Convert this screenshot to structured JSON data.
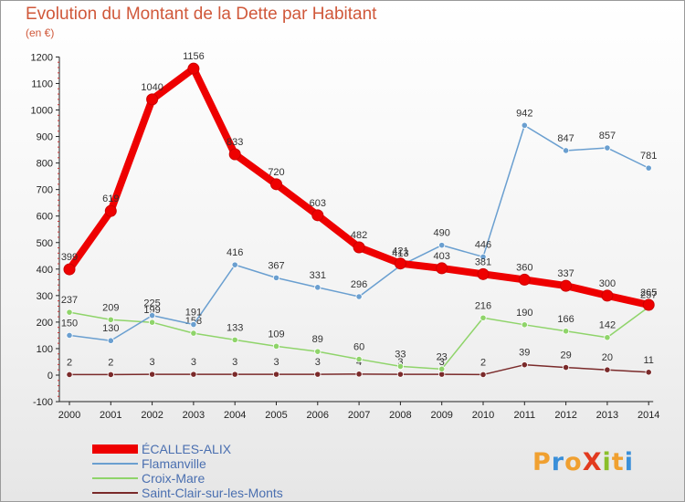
{
  "title": "Evolution du Montant de la Dette par Habitant",
  "unit": "(en €)",
  "logo": {
    "text": "ProXiti",
    "letters": [
      "P",
      "r",
      "o",
      "X",
      "i",
      "t",
      "i"
    ],
    "colors": [
      "#f0a030",
      "#3a8fd9",
      "#f0a030",
      "#e23a1f",
      "#8abf2a",
      "#f0a030",
      "#3a8fd9"
    ]
  },
  "chart_data": {
    "type": "line",
    "title": "Evolution du Montant de la Dette par Habitant",
    "ylabel": "(en €)",
    "x": [
      "2000",
      "2001",
      "2002",
      "2003",
      "2004",
      "2005",
      "2006",
      "2007",
      "2008",
      "2009",
      "2010",
      "2011",
      "2012",
      "2013",
      "2014"
    ],
    "yticks": [
      "-100",
      "0",
      "100",
      "200",
      "300",
      "400",
      "500",
      "600",
      "700",
      "800",
      "900",
      "1000",
      "1100",
      "1200"
    ],
    "ylim": [
      -100,
      1200
    ],
    "grid": false,
    "legend_position": "bottom-left",
    "series": [
      {
        "name": "Saint-Clair-sur-les-Monts",
        "color": "#7a2a2a",
        "width": 1.5,
        "values": [
          2,
          2,
          3,
          3,
          3,
          3,
          3,
          4,
          3,
          3,
          2,
          39,
          29,
          20,
          11
        ],
        "labels": [
          "2",
          "2",
          "3",
          "3",
          "3",
          "3",
          "3",
          "4",
          "3",
          "3",
          "2",
          "39",
          "29",
          "20",
          "11"
        ]
      },
      {
        "name": "Croix-Mare",
        "color": "#8fd46a",
        "width": 1.5,
        "values": [
          237,
          209,
          199,
          158,
          133,
          109,
          89,
          60,
          33,
          23,
          216,
          190,
          166,
          142,
          257
        ],
        "labels": [
          "237",
          "209",
          "199",
          "158",
          "133",
          "109",
          "89",
          "60",
          "33",
          "23",
          "216",
          "190",
          "166",
          "142",
          "257"
        ]
      },
      {
        "name": "Flamanville",
        "color": "#6a9fd0",
        "width": 1.5,
        "values": [
          150,
          130,
          225,
          191,
          416,
          367,
          331,
          296,
          413,
          490,
          446,
          942,
          847,
          857,
          781
        ],
        "labels": [
          "150",
          "130",
          "225",
          "191",
          "416",
          "367",
          "331",
          "296",
          "413",
          "490",
          "446",
          "942",
          "847",
          "857",
          "781"
        ]
      },
      {
        "name": "ÉCALLES-ALIX",
        "color": "#ee0000",
        "width": 8,
        "values": [
          399,
          619,
          1040,
          1156,
          833,
          720,
          603,
          482,
          421,
          403,
          381,
          360,
          337,
          300,
          265
        ],
        "labels": [
          "399",
          "619",
          "1040",
          "1156",
          "833",
          "720",
          "603",
          "482",
          "421",
          "403",
          "381",
          "360",
          "337",
          "300",
          "265"
        ]
      }
    ]
  }
}
